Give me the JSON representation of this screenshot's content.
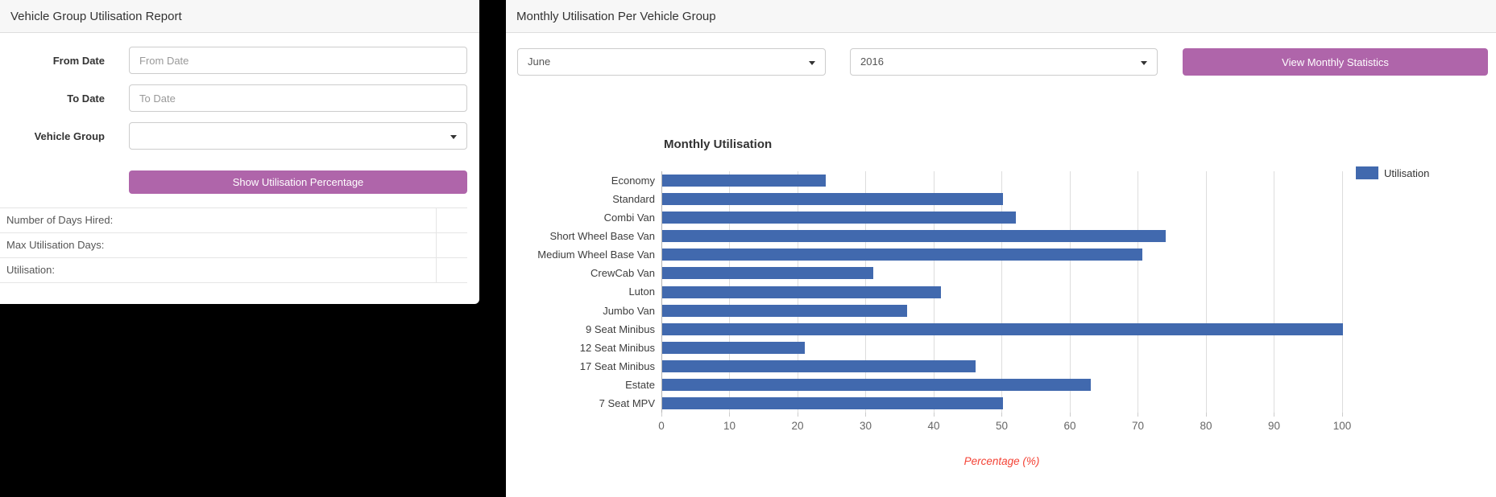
{
  "left_panel": {
    "title": "Vehicle Group Utilisation Report",
    "form": {
      "from_date_label": "From Date",
      "from_date_placeholder": "From Date",
      "from_date_value": "",
      "to_date_label": "To Date",
      "to_date_placeholder": "To Date",
      "to_date_value": "",
      "vehicle_group_label": "Vehicle Group",
      "vehicle_group_value": "",
      "submit_label": "Show Utilisation Percentage"
    },
    "summary_rows": [
      {
        "label": "Number of Days Hired:",
        "value": ""
      },
      {
        "label": "Max Utilisation Days:",
        "value": ""
      },
      {
        "label": "Utilisation:",
        "value": ""
      }
    ]
  },
  "right_panel": {
    "title": "Monthly Utilisation Per Vehicle Group",
    "month_select_value": "June",
    "year_select_value": "2016",
    "button_label": "View Monthly Statistics"
  },
  "colors": {
    "accent_purple": "#af65aa",
    "bar_blue": "#4169ae",
    "axis_title_red": "#f44336",
    "header_band": "#f7f7f7",
    "gridline": "#dddddd"
  },
  "chart_data": {
    "type": "bar",
    "orientation": "horizontal",
    "title": "Monthly Utilisation",
    "legend": [
      "Utilisation"
    ],
    "legend_position": "top-right",
    "categories": [
      "Economy",
      "Standard",
      "Combi Van",
      "Short Wheel Base Van",
      "Medium Wheel Base Van",
      "CrewCab Van",
      "Luton",
      "Jumbo Van",
      "9 Seat Minibus",
      "12 Seat Minibus",
      "17 Seat Minibus",
      "Estate",
      "7 Seat MPV"
    ],
    "series": [
      {
        "name": "Utilisation",
        "values": [
          24,
          50,
          52,
          74,
          70.5,
          31,
          41,
          36,
          100,
          21,
          46,
          63,
          50
        ]
      }
    ],
    "xlabel": "Percentage (%)",
    "xlim": [
      0,
      100
    ],
    "xticks": [
      0,
      10,
      20,
      30,
      40,
      50,
      60,
      70,
      80,
      90,
      100
    ],
    "grid": true
  }
}
